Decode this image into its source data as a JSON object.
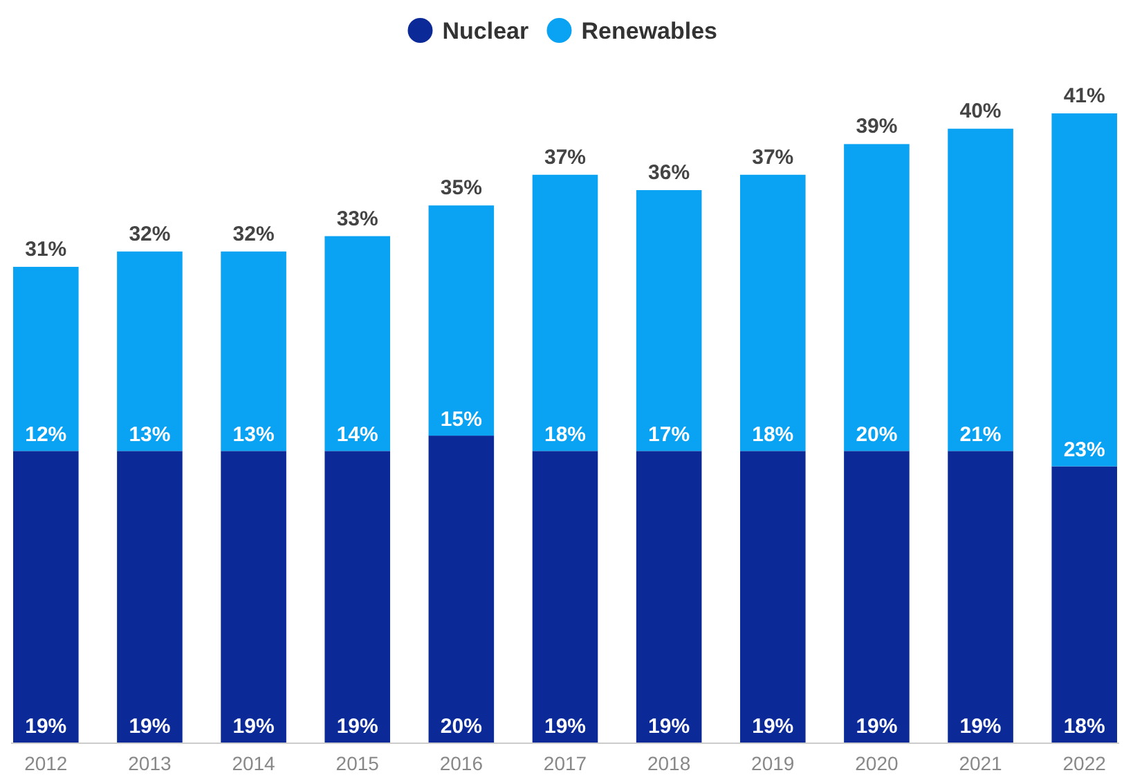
{
  "chart_data": {
    "type": "bar",
    "stacked": true,
    "legend": "top",
    "categories": [
      "2012",
      "2013",
      "2014",
      "2015",
      "2016",
      "2017",
      "2018",
      "2019",
      "2020",
      "2021",
      "2022"
    ],
    "series": [
      {
        "name": "Nuclear",
        "color": "#0b2a97",
        "values": [
          19,
          19,
          19,
          19,
          20,
          19,
          19,
          19,
          19,
          19,
          18
        ],
        "value_labels": [
          "19%",
          "19%",
          "19%",
          "19%",
          "20%",
          "19%",
          "19%",
          "19%",
          "19%",
          "19%",
          "18%"
        ]
      },
      {
        "name": "Renewables",
        "color": "#0aa2f2",
        "values": [
          12,
          13,
          13,
          14,
          15,
          18,
          17,
          18,
          20,
          21,
          23
        ],
        "value_labels": [
          "12%",
          "13%",
          "13%",
          "14%",
          "15%",
          "18%",
          "17%",
          "18%",
          "20%",
          "21%",
          "23%"
        ]
      }
    ],
    "totals": [
      "31%",
      "32%",
      "32%",
      "33%",
      "35%",
      "37%",
      "36%",
      "37%",
      "39%",
      "40%",
      "41%"
    ]
  }
}
